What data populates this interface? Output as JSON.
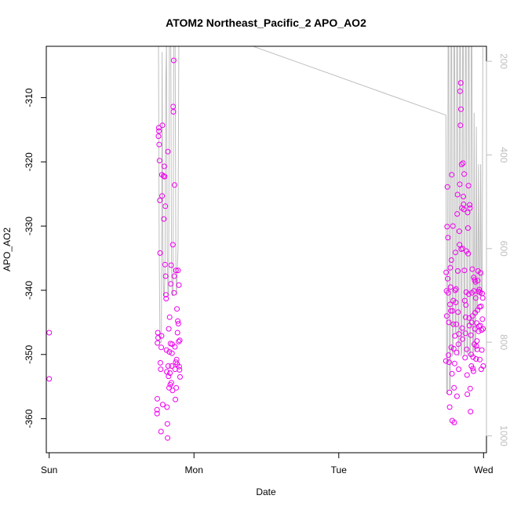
{
  "chart_data": {
    "type": "scatter",
    "title": "ATOM2 Northeast_Pacific_2 APO_AO2",
    "xlabel": "Date",
    "ylabel": "APO_AO2",
    "x_unit": "days",
    "xlim": [
      -0.02,
      3.02
    ],
    "ylim": [
      -365.3,
      -302.0
    ],
    "x_ticks": [
      {
        "value": 0,
        "label": "Sun"
      },
      {
        "value": 1,
        "label": "Mon"
      },
      {
        "value": 2,
        "label": "Tue"
      },
      {
        "value": 3,
        "label": "Wed"
      }
    ],
    "y_ticks": [
      -360,
      -350,
      -340,
      -330,
      -320,
      -310
    ],
    "secondary_y": {
      "ticks": [
        200,
        400,
        600,
        800,
        1000
      ],
      "lim": [
        1036,
        168
      ],
      "reversed": true,
      "color": "#bebebe"
    },
    "colors": {
      "points": "#ee00ee",
      "line": "#bebebe",
      "axis": "#000000"
    },
    "series": [
      {
        "type": "scatter",
        "points": [
          [
            0.0,
            -346.6
          ],
          [
            0.0,
            -353.8
          ],
          [
            0.745,
            -359.2
          ],
          [
            0.745,
            -358.6
          ],
          [
            0.747,
            -356.9
          ],
          [
            0.748,
            -348.2
          ],
          [
            0.75,
            -346.6
          ],
          [
            0.752,
            -347.4
          ],
          [
            0.755,
            -316.0
          ],
          [
            0.757,
            -314.7
          ],
          [
            0.758,
            -315.2
          ],
          [
            0.76,
            -317.3
          ],
          [
            0.762,
            -319.8
          ],
          [
            0.764,
            -326.0
          ],
          [
            0.766,
            -334.2
          ],
          [
            0.768,
            -351.3
          ],
          [
            0.77,
            -352.3
          ],
          [
            0.772,
            -362.0
          ],
          [
            0.774,
            -348.9
          ],
          [
            0.776,
            -347.1
          ],
          [
            0.778,
            -322.0
          ],
          [
            0.78,
            -325.3
          ],
          [
            0.782,
            -314.3
          ],
          [
            0.784,
            -357.8
          ],
          [
            0.79,
            -322.2
          ],
          [
            0.792,
            -328.9
          ],
          [
            0.795,
            -320.7
          ],
          [
            0.797,
            -322.3
          ],
          [
            0.8,
            -336.0
          ],
          [
            0.802,
            -326.9
          ],
          [
            0.804,
            -337.8
          ],
          [
            0.806,
            -340.7
          ],
          [
            0.808,
            -341.3
          ],
          [
            0.81,
            -349.3
          ],
          [
            0.812,
            -352.7
          ],
          [
            0.814,
            -358.2
          ],
          [
            0.816,
            -360.8
          ],
          [
            0.818,
            -363.0
          ],
          [
            0.82,
            -318.4
          ],
          [
            0.822,
            -351.8
          ],
          [
            0.824,
            -353.4
          ],
          [
            0.826,
            -346.0
          ],
          [
            0.828,
            -355.2
          ],
          [
            0.83,
            -349.6
          ],
          [
            0.832,
            -344.2
          ],
          [
            0.834,
            -352.9
          ],
          [
            0.836,
            -354.7
          ],
          [
            0.838,
            -348.3
          ],
          [
            0.84,
            -339.0
          ],
          [
            0.842,
            -336.1
          ],
          [
            0.844,
            -354.4
          ],
          [
            0.846,
            -351.8
          ],
          [
            0.848,
            -349.8
          ],
          [
            0.85,
            -348.4
          ],
          [
            0.852,
            -355.6
          ],
          [
            0.854,
            -332.9
          ],
          [
            0.856,
            -311.4
          ],
          [
            0.858,
            -312.2
          ],
          [
            0.86,
            -304.2
          ],
          [
            0.862,
            -340.4
          ],
          [
            0.864,
            -337.8
          ],
          [
            0.866,
            -323.6
          ],
          [
            0.868,
            -348.8
          ],
          [
            0.87,
            -352.3
          ],
          [
            0.872,
            -357.0
          ],
          [
            0.874,
            -351.2
          ],
          [
            0.876,
            -336.9
          ],
          [
            0.878,
            -355.2
          ],
          [
            0.88,
            -350.8
          ],
          [
            0.882,
            -342.9
          ],
          [
            0.884,
            -351.5
          ],
          [
            0.886,
            -346.6
          ],
          [
            0.888,
            -344.8
          ],
          [
            0.89,
            -336.9
          ],
          [
            0.892,
            -345.2
          ],
          [
            0.894,
            -348.0
          ],
          [
            0.896,
            -339.2
          ],
          [
            0.898,
            -351.9
          ],
          [
            0.9,
            -352.4
          ],
          [
            0.902,
            -347.8
          ],
          [
            0.904,
            -353.5
          ],
          [
            2.74,
            -351.0
          ],
          [
            2.742,
            -337.2
          ],
          [
            2.744,
            -340.1
          ],
          [
            2.746,
            -344.0
          ],
          [
            2.748,
            -330.1
          ],
          [
            2.75,
            -323.9
          ],
          [
            2.752,
            -338.2
          ],
          [
            2.754,
            -331.8
          ],
          [
            2.756,
            -340.4
          ],
          [
            2.758,
            -350.1
          ],
          [
            2.76,
            -345.0
          ],
          [
            2.762,
            -351.2
          ],
          [
            2.764,
            -355.9
          ],
          [
            2.766,
            -358.2
          ],
          [
            2.768,
            -342.2
          ],
          [
            2.77,
            -336.5
          ],
          [
            2.772,
            -339.5
          ],
          [
            2.774,
            -343.2
          ],
          [
            2.776,
            -348.9
          ],
          [
            2.778,
            -335.3
          ],
          [
            2.78,
            -322.0
          ],
          [
            2.782,
            -353.0
          ],
          [
            2.784,
            -360.3
          ],
          [
            2.786,
            -343.2
          ],
          [
            2.788,
            -330.0
          ],
          [
            2.79,
            -341.6
          ],
          [
            2.792,
            -345.3
          ],
          [
            2.794,
            -349.1
          ],
          [
            2.796,
            -355.2
          ],
          [
            2.798,
            -360.6
          ],
          [
            2.8,
            -351.4
          ],
          [
            2.802,
            -347.1
          ],
          [
            2.804,
            -340.0
          ],
          [
            2.806,
            -334.1
          ],
          [
            2.808,
            -341.9
          ],
          [
            2.81,
            -339.8
          ],
          [
            2.812,
            -345.3
          ],
          [
            2.814,
            -349.7
          ],
          [
            2.816,
            -356.5
          ],
          [
            2.818,
            -328.1
          ],
          [
            2.82,
            -325.1
          ],
          [
            2.822,
            -337.0
          ],
          [
            2.824,
            -343.4
          ],
          [
            2.826,
            -348.4
          ],
          [
            2.828,
            -352.3
          ],
          [
            2.83,
            -346.8
          ],
          [
            2.832,
            -330.8
          ],
          [
            2.834,
            -332.9
          ],
          [
            2.836,
            -323.5
          ],
          [
            2.838,
            -309.0
          ],
          [
            2.84,
            -314.3
          ],
          [
            2.842,
            -307.7
          ],
          [
            2.844,
            -311.8
          ],
          [
            2.846,
            -333.6
          ],
          [
            2.848,
            -320.4
          ],
          [
            2.85,
            -327.2
          ],
          [
            2.852,
            -345.9
          ],
          [
            2.854,
            -347.6
          ],
          [
            2.856,
            -333.5
          ],
          [
            2.858,
            -320.2
          ],
          [
            2.86,
            -325.4
          ],
          [
            2.862,
            -326.6
          ],
          [
            2.864,
            -327.4
          ],
          [
            2.866,
            -321.9
          ],
          [
            2.868,
            -336.9
          ],
          [
            2.87,
            -341.6
          ],
          [
            2.872,
            -350.5
          ],
          [
            2.874,
            -346.7
          ],
          [
            2.876,
            -344.2
          ],
          [
            2.878,
            -342.3
          ],
          [
            2.88,
            -340.3
          ],
          [
            2.882,
            -333.9
          ],
          [
            2.884,
            -349.2
          ],
          [
            2.886,
            -353.2
          ],
          [
            2.888,
            -356.2
          ],
          [
            2.89,
            -327.9
          ],
          [
            2.892,
            -330.3
          ],
          [
            2.894,
            -334.3
          ],
          [
            2.896,
            -323.7
          ],
          [
            2.898,
            -340.6
          ],
          [
            2.9,
            -344.3
          ],
          [
            2.902,
            -345.5
          ],
          [
            2.904,
            -326.7
          ],
          [
            2.906,
            -327.2
          ],
          [
            2.908,
            -355.3
          ],
          [
            2.91,
            -358.9
          ],
          [
            2.912,
            -347.0
          ],
          [
            2.914,
            -350.0
          ],
          [
            2.916,
            -351.8
          ],
          [
            2.918,
            -345.0
          ],
          [
            2.92,
            -340.4
          ],
          [
            2.922,
            -336.7
          ],
          [
            2.924,
            -344.0
          ],
          [
            2.926,
            -352.2
          ],
          [
            2.928,
            -350.4
          ],
          [
            2.93,
            -352.6
          ],
          [
            2.932,
            -338.0
          ],
          [
            2.934,
            -340.1
          ],
          [
            2.936,
            -348.4
          ],
          [
            2.938,
            -338.4
          ],
          [
            2.94,
            -346.0
          ],
          [
            2.942,
            -343.5
          ],
          [
            2.944,
            -338.7
          ],
          [
            2.946,
            -341.2
          ],
          [
            2.948,
            -350.7
          ],
          [
            2.95,
            -348.7
          ],
          [
            2.952,
            -345.1
          ],
          [
            2.954,
            -347.9
          ],
          [
            2.956,
            -349.2
          ],
          [
            2.958,
            -343.1
          ],
          [
            2.96,
            -338.5
          ],
          [
            2.962,
            -337.0
          ],
          [
            2.964,
            -340.2
          ],
          [
            2.966,
            -346.4
          ],
          [
            2.968,
            -345.6
          ],
          [
            2.97,
            -339.9
          ],
          [
            2.972,
            -342.6
          ],
          [
            2.974,
            -350.8
          ],
          [
            2.976,
            -340.3
          ],
          [
            2.978,
            -345.5
          ],
          [
            2.98,
            -337.3
          ],
          [
            2.982,
            -342.5
          ],
          [
            2.984,
            -352.3
          ],
          [
            2.986,
            -346.2
          ],
          [
            2.988,
            -349.3
          ],
          [
            2.99,
            -340.5
          ],
          [
            2.992,
            -344.5
          ],
          [
            2.994,
            -341.2
          ],
          [
            2.996,
            -346.0
          ],
          [
            2.998,
            -351.8
          ]
        ]
      },
      {
        "type": "line",
        "axis": "secondary",
        "points": [
          [
            0.745,
            165
          ],
          [
            0.752,
            165
          ],
          [
            0.755,
            165
          ],
          [
            0.76,
            600
          ],
          [
            0.765,
            800
          ],
          [
            0.77,
            800
          ],
          [
            0.775,
            800
          ],
          [
            0.78,
            180
          ],
          [
            0.785,
            600
          ],
          [
            0.79,
            700
          ],
          [
            0.795,
            700
          ],
          [
            0.8,
            650
          ],
          [
            0.805,
            250
          ],
          [
            0.81,
            165
          ],
          [
            0.815,
            600
          ],
          [
            0.82,
            700
          ],
          [
            0.825,
            700
          ],
          [
            0.83,
            165
          ],
          [
            0.84,
            165
          ],
          [
            0.845,
            650
          ],
          [
            0.85,
            700
          ],
          [
            0.855,
            700
          ],
          [
            0.86,
            165
          ],
          [
            0.87,
            165
          ],
          [
            0.875,
            650
          ],
          [
            0.88,
            700
          ],
          [
            0.885,
            650
          ],
          [
            0.89,
            600
          ],
          [
            0.895,
            165
          ],
          [
            0.9,
            165
          ],
          [
            1.38,
            165
          ],
          [
            2.74,
            315
          ],
          [
            2.745,
            910
          ],
          [
            2.75,
            910
          ],
          [
            2.755,
            165
          ],
          [
            2.76,
            165
          ],
          [
            2.765,
            900
          ],
          [
            2.77,
            900
          ],
          [
            2.775,
            165
          ],
          [
            2.78,
            165
          ],
          [
            2.785,
            830
          ],
          [
            2.79,
            820
          ],
          [
            2.795,
            165
          ],
          [
            2.8,
            165
          ],
          [
            2.805,
            780
          ],
          [
            2.81,
            780
          ],
          [
            2.815,
            165
          ],
          [
            2.82,
            165
          ],
          [
            2.825,
            820
          ],
          [
            2.83,
            830
          ],
          [
            2.835,
            165
          ],
          [
            2.84,
            165
          ],
          [
            2.845,
            830
          ],
          [
            2.85,
            820
          ],
          [
            2.855,
            165
          ],
          [
            2.86,
            165
          ],
          [
            2.865,
            830
          ],
          [
            2.87,
            820
          ],
          [
            2.875,
            165
          ],
          [
            2.88,
            165
          ],
          [
            2.885,
            820
          ],
          [
            2.89,
            830
          ],
          [
            2.895,
            165
          ],
          [
            2.9,
            165
          ],
          [
            2.905,
            830
          ],
          [
            2.91,
            830
          ],
          [
            2.915,
            165
          ],
          [
            2.92,
            165
          ],
          [
            2.925,
            820
          ],
          [
            2.93,
            830
          ],
          [
            2.935,
            310
          ],
          [
            2.94,
            820
          ],
          [
            2.945,
            820
          ],
          [
            2.95,
            340
          ],
          [
            2.955,
            740
          ],
          [
            2.96,
            700
          ],
          [
            2.965,
            420
          ],
          [
            2.97,
            700
          ],
          [
            2.975,
            700
          ],
          [
            2.98,
            420
          ],
          [
            2.985,
            700
          ],
          [
            2.99,
            700
          ],
          [
            2.995,
            170
          ]
        ]
      }
    ]
  }
}
